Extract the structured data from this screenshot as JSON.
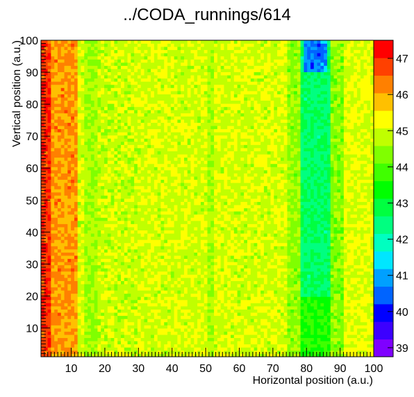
{
  "chart_data": {
    "type": "heatmap",
    "title": "../CODA_runnings/614",
    "xlabel": "Horizontal position (a.u.)",
    "ylabel": "Vertical position (a.u.)",
    "xlim": [
      1,
      100
    ],
    "ylim": [
      1,
      100
    ],
    "zlim": [
      38.75,
      47.5
    ],
    "x_ticks": [
      10,
      20,
      30,
      40,
      50,
      60,
      70,
      80,
      90,
      100
    ],
    "y_ticks": [
      10,
      20,
      30,
      40,
      50,
      60,
      70,
      80,
      90,
      100
    ],
    "z_ticks": [
      39,
      40,
      41,
      42,
      43,
      44,
      45,
      46,
      47
    ],
    "bins": [
      100,
      100
    ],
    "colorbar_colors": [
      "#7f00ff",
      "#3c00ff",
      "#0000ff",
      "#0064ff",
      "#00a0ff",
      "#00e6ff",
      "#00ffc0",
      "#00ff80",
      "#00ff40",
      "#00ff00",
      "#40ff00",
      "#80ff00",
      "#c0ff00",
      "#ffff00",
      "#ffc000",
      "#ff8000",
      "#ff4000",
      "#ff0000"
    ],
    "description_profile": {
      "columns": [
        {
          "x_range": [
            1,
            3
          ],
          "value": 46.9
        },
        {
          "x_range": [
            4,
            11
          ],
          "value": 46.1
        },
        {
          "x_range": [
            12,
            13
          ],
          "value": 45.0
        },
        {
          "x_range": [
            14,
            17
          ],
          "value": 44.6
        },
        {
          "x_range": [
            18,
            29
          ],
          "value": 44.9
        },
        {
          "x_range": [
            30,
            50
          ],
          "value": 45.0
        },
        {
          "x_range": [
            51,
            52
          ],
          "value": 44.6
        },
        {
          "x_range": [
            53,
            74
          ],
          "value": 45.0
        },
        {
          "x_range": [
            75,
            78
          ],
          "value": 44.5
        },
        {
          "x_range": [
            79,
            87
          ],
          "value": 42.6
        },
        {
          "x_range": [
            88,
            91
          ],
          "value": 44.4
        },
        {
          "x_range": [
            92,
            100
          ],
          "value": 45.1
        }
      ]
    }
  }
}
